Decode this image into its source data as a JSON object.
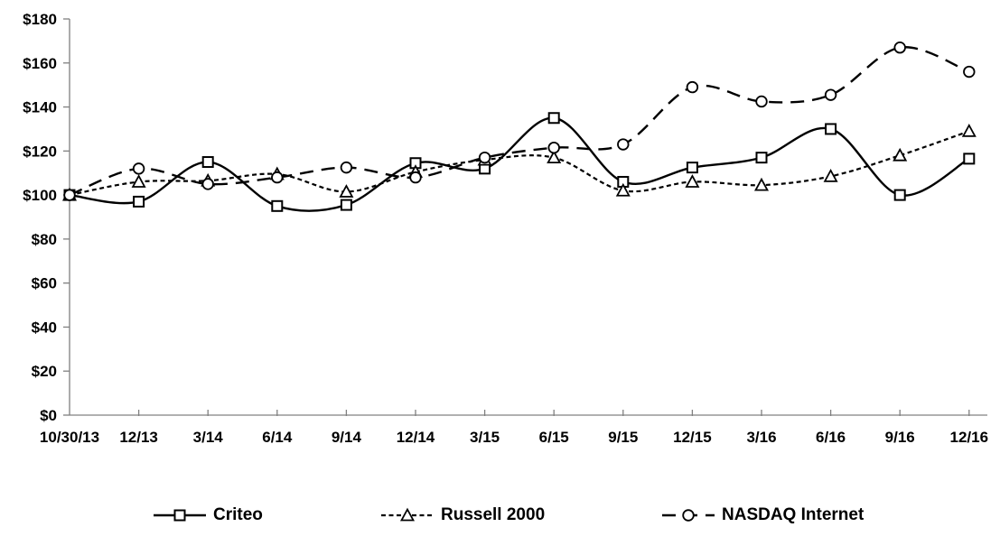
{
  "chart_data": {
    "type": "line",
    "title": "",
    "xlabel": "",
    "ylabel": "",
    "grid": false,
    "line_smoothing": true,
    "legend_position": "bottom",
    "axis_color": "#808080",
    "text_color": "#000000",
    "background_color": "#ffffff",
    "categories": [
      "10/30/13",
      "12/13",
      "3/14",
      "6/14",
      "9/14",
      "12/14",
      "3/15",
      "6/15",
      "9/15",
      "12/15",
      "3/16",
      "6/16",
      "9/16",
      "12/16"
    ],
    "y_axis": {
      "min": 0,
      "max": 180,
      "tick_step": 20,
      "prefix": "$",
      "tick_labels": [
        "$0",
        "$20",
        "$40",
        "$60",
        "$80",
        "$100",
        "$120",
        "$140",
        "$160",
        "$180"
      ]
    },
    "series": [
      {
        "name": "Criteo",
        "marker": "square",
        "line_style": "solid",
        "color": "#000000",
        "values": [
          100,
          97,
          115,
          95,
          95.5,
          114.5,
          112,
          135,
          106,
          112.5,
          117,
          130,
          100,
          116.5
        ]
      },
      {
        "name": "Russell 2000",
        "marker": "triangle",
        "line_style": "short-dash",
        "color": "#000000",
        "values": [
          100,
          106,
          106.5,
          109.5,
          101.5,
          110.5,
          116,
          117,
          102,
          106,
          104.5,
          108.5,
          118,
          129
        ]
      },
      {
        "name": "NASDAQ Internet",
        "marker": "circle",
        "line_style": "long-dash",
        "color": "#000000",
        "values": [
          100,
          112,
          105,
          108,
          112.5,
          108,
          117,
          121.5,
          123,
          149,
          142.5,
          145.5,
          167,
          156
        ]
      }
    ]
  }
}
